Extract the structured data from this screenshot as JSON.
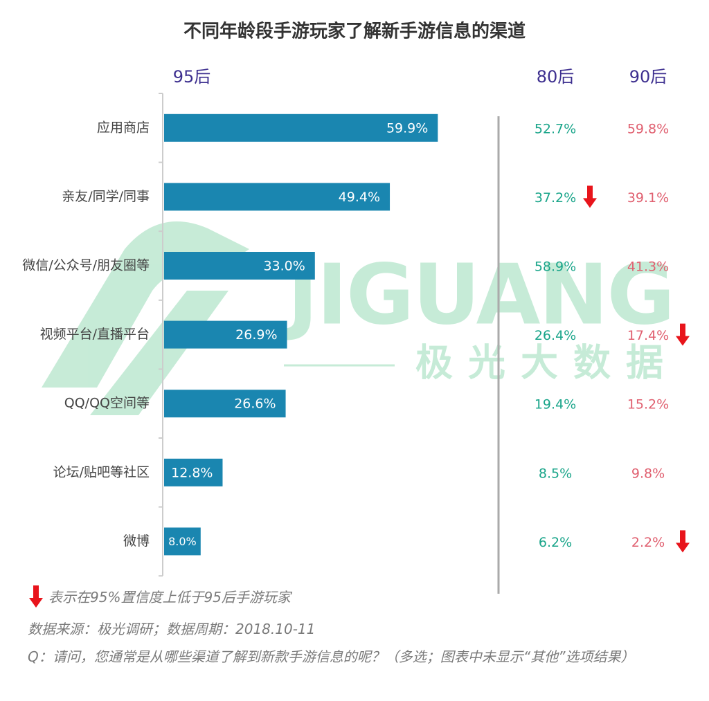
{
  "chart_data": {
    "type": "bar",
    "orientation": "horizontal",
    "title": "不同年龄段手游玩家了解新手游信息的渠道",
    "categories": [
      "应用商店",
      "亲友/同学/同事",
      "微信/公众号/朋友圈等",
      "视频平台/直播平台",
      "QQ/QQ空间等",
      "论坛/贴吧等社区",
      "微博"
    ],
    "series": [
      {
        "name": "95后",
        "color": "#1a86b0",
        "label_color": "#3d2f8f",
        "style": "bars",
        "values": [
          59.9,
          49.4,
          33.0,
          26.9,
          26.6,
          12.8,
          8.0
        ],
        "value_labels": [
          "59.9%",
          "49.4%",
          "33.0%",
          "26.9%",
          "26.6%",
          "12.8%",
          "8.0%"
        ]
      },
      {
        "name": "80后",
        "color": "#1aa58a",
        "label_color": "#3d2f8f",
        "style": "text",
        "values": [
          52.7,
          37.2,
          58.9,
          26.4,
          19.4,
          8.5,
          6.2
        ],
        "value_labels": [
          "52.7%",
          "37.2%",
          "58.9%",
          "26.4%",
          "19.4%",
          "8.5%",
          "6.2%"
        ],
        "lower_than_95": [
          false,
          true,
          false,
          false,
          false,
          false,
          false
        ]
      },
      {
        "name": "90后",
        "color": "#e06070",
        "label_color": "#3d2f8f",
        "style": "text",
        "values": [
          59.8,
          39.1,
          41.3,
          17.4,
          15.2,
          9.8,
          2.2
        ],
        "value_labels": [
          "59.8%",
          "39.1%",
          "41.3%",
          "17.4%",
          "15.2%",
          "9.8%",
          "2.2%"
        ],
        "lower_than_95": [
          false,
          false,
          false,
          true,
          false,
          false,
          true
        ]
      }
    ],
    "arrow_color": "#e8141b",
    "note": "表示在95%置信度上低于95后手游玩家",
    "source": "数据来源：极光调研；数据周期：2018.10-11",
    "question": "Q：请问，您通常是从哪些渠道了解到新款手游信息的呢？（多选；图表中未显示“其他”选项结果）",
    "watermark": {
      "brand": "JIGUANG",
      "subtitle": "极光大数据"
    }
  }
}
